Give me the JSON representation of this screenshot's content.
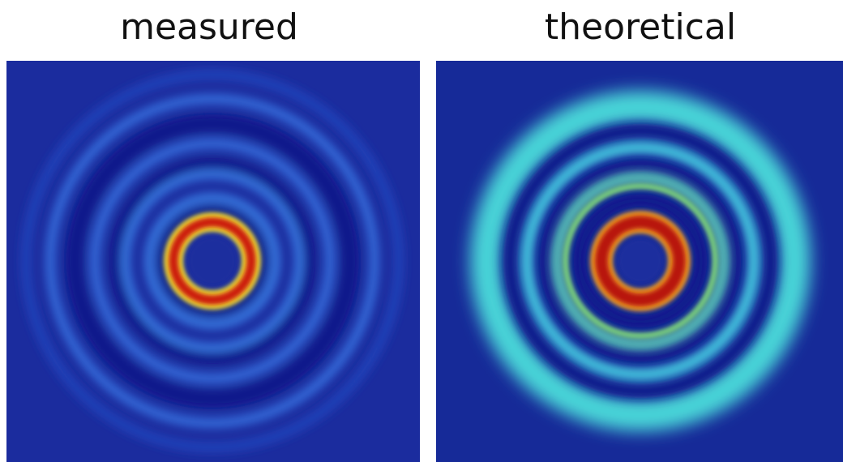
{
  "panels": [
    {
      "title": "measured"
    },
    {
      "title": "theoretical"
    }
  ]
}
